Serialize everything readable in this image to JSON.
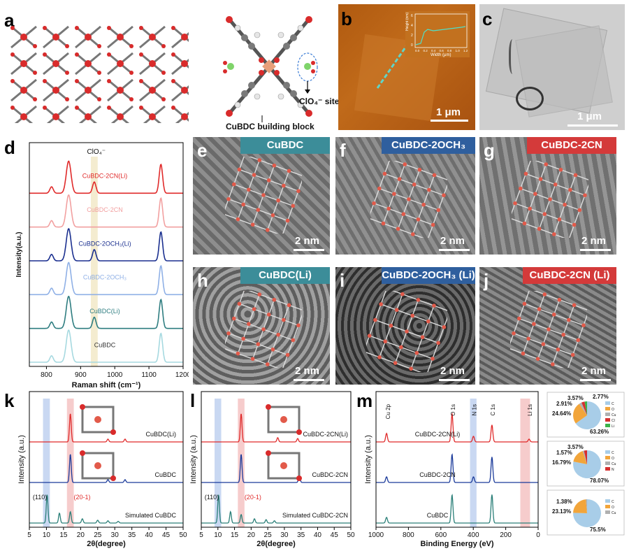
{
  "panels": {
    "a": {
      "label": "a",
      "site_label": "ClO₄⁻ site",
      "block_label": "CuBDC building block"
    },
    "b": {
      "label": "b",
      "scale_bar": "1 μm",
      "inset": {
        "ylabel": "Height (nm)",
        "xlabel": "Width (μm)",
        "yticks": [
          "0",
          "2",
          "4",
          "6"
        ],
        "xticks": [
          "0.0",
          "0.2",
          "0.4",
          "0.6",
          "0.8",
          "1.0",
          "1.2"
        ]
      }
    },
    "c": {
      "label": "c",
      "scale_bar": "1 μm"
    },
    "d": {
      "label": "d",
      "clo4_label": "ClO₄⁻"
    },
    "e": {
      "label": "e",
      "title": "CuBDC",
      "scale_bar": "2 nm",
      "color": "#3c8d99"
    },
    "f": {
      "label": "f",
      "title": "CuBDC-2OCH₃",
      "scale_bar": "2 nm",
      "color": "#2f5f9e"
    },
    "g": {
      "label": "g",
      "title": "CuBDC-2CN",
      "scale_bar": "2 nm",
      "color": "#d43a3a"
    },
    "h": {
      "label": "h",
      "title": "CuBDC(Li)",
      "scale_bar": "2 nm",
      "color": "#3c8d99"
    },
    "i": {
      "label": "i",
      "title": "CuBDC-2OCH₃ (Li)",
      "scale_bar": "2 nm",
      "color": "#2f5f9e"
    },
    "j": {
      "label": "j",
      "title": "CuBDC-2CN (Li)",
      "scale_bar": "2 nm",
      "color": "#d43a3a"
    },
    "k": {
      "label": "k"
    },
    "l": {
      "label": "l"
    },
    "m": {
      "label": "m"
    }
  },
  "chart_data": [
    {
      "id": "d",
      "type": "line",
      "xlabel": "Raman shift (cm⁻¹)",
      "ylabel": "Intensity(a.u.)",
      "xlim": [
        750,
        1200
      ],
      "xticks": [
        800,
        900,
        1000,
        1100,
        1200
      ],
      "highlight_band": [
        930,
        950
      ],
      "peaks_cm-1": [
        815,
        865,
        940,
        1135
      ],
      "series": [
        {
          "name": "CuBDC-2CN(Li)",
          "color": "#e02a2a",
          "offset": 5,
          "has_clo4": true
        },
        {
          "name": "CuBDC-2CN",
          "color": "#f2a0a0",
          "offset": 4,
          "has_clo4": false
        },
        {
          "name": "CuBDC-2OCH₃(Li)",
          "color": "#1a2f8f",
          "offset": 3,
          "has_clo4": true
        },
        {
          "name": "CuBDC-2OCH₃",
          "color": "#8fb0e6",
          "offset": 2,
          "has_clo4": false
        },
        {
          "name": "CuBDC(Li)",
          "color": "#2e7d80",
          "offset": 1,
          "has_clo4": true
        },
        {
          "name": "CuBDC",
          "color": "#a6d9e0",
          "offset": 0,
          "has_clo4": false
        }
      ]
    },
    {
      "id": "k",
      "type": "line",
      "xlabel": "2θ(degree)",
      "ylabel": "Intensity (a.u.)",
      "xlim": [
        5,
        50
      ],
      "xticks": [
        5,
        10,
        15,
        20,
        25,
        30,
        35,
        40,
        45,
        50
      ],
      "bands": [
        {
          "range": [
            9,
            11
          ],
          "color": "#c9d8f2"
        },
        {
          "range": [
            16,
            18
          ],
          "color": "#f6cccc"
        }
      ],
      "annotations": [
        "(110)",
        "(20-1)"
      ],
      "series": [
        {
          "name": "CuBDC(Li)",
          "color": "#e02a2a",
          "peaks": [
            [
              17,
              1.0
            ],
            [
              28,
              0.1
            ],
            [
              33,
              0.1
            ]
          ]
        },
        {
          "name": "CuBDC",
          "color": "#1a3a9a",
          "peaks": [
            [
              17,
              1.0
            ],
            [
              28,
              0.1
            ],
            [
              33,
              0.1
            ]
          ]
        },
        {
          "name": "Simulated CuBDC",
          "color": "#2a7f78",
          "peaks": [
            [
              10.2,
              1.0
            ],
            [
              13.8,
              0.35
            ],
            [
              17,
              0.4
            ],
            [
              20.5,
              0.15
            ],
            [
              25,
              0.1
            ],
            [
              28,
              0.08
            ],
            [
              31,
              0.06
            ]
          ]
        }
      ]
    },
    {
      "id": "l",
      "type": "line",
      "xlabel": "2θ(degree)",
      "ylabel": "Intensity (a.u.)",
      "xlim": [
        5,
        50
      ],
      "xticks": [
        5,
        10,
        15,
        20,
        25,
        30,
        35,
        40,
        45,
        50
      ],
      "bands": [
        {
          "range": [
            9,
            11
          ],
          "color": "#c9d8f2"
        },
        {
          "range": [
            16,
            18
          ],
          "color": "#f6cccc"
        }
      ],
      "annotations": [
        "(110)",
        "(20-1)"
      ],
      "series": [
        {
          "name": "CuBDC-2CN(Li)",
          "color": "#e02a2a",
          "peaks": [
            [
              17,
              1.0
            ],
            [
              28,
              0.15
            ],
            [
              34,
              0.12
            ]
          ]
        },
        {
          "name": "CuBDC-2CN",
          "color": "#1a3a9a",
          "peaks": [
            [
              17,
              1.0
            ],
            [
              34.5,
              0.25
            ]
          ]
        },
        {
          "name": "Simulated CuBDC-2CN",
          "color": "#2a7f78",
          "peaks": [
            [
              10.2,
              1.0
            ],
            [
              13.8,
              0.4
            ],
            [
              17,
              0.3
            ],
            [
              21,
              0.15
            ],
            [
              24.5,
              0.12
            ],
            [
              27,
              0.08
            ]
          ]
        }
      ]
    },
    {
      "id": "m",
      "type": "line",
      "xlabel": "Binding Energy (eV)",
      "ylabel": "Intensity (a.u.)",
      "xlim": [
        1000,
        0
      ],
      "xticks": [
        1000,
        800,
        600,
        400,
        200,
        0
      ],
      "peak_labels": [
        "Cu 2p",
        "O 1s",
        "N 1s",
        "C 1s",
        "Li 1s"
      ],
      "bands": [
        {
          "range": [
            420,
            380
          ],
          "color": "#c9d8f2"
        },
        {
          "range": [
            110,
            50
          ],
          "color": "#f6cccc"
        }
      ],
      "series": [
        {
          "name": "CuBDC-2CN(Li)",
          "color": "#e02a2a",
          "peaks": [
            [
              935,
              0.3
            ],
            [
              531,
              1.0
            ],
            [
              399,
              0.2
            ],
            [
              285,
              0.6
            ],
            [
              56,
              0.1
            ]
          ]
        },
        {
          "name": "CuBDC-2CN",
          "color": "#1a3a9a",
          "peaks": [
            [
              935,
              0.2
            ],
            [
              531,
              1.0
            ],
            [
              399,
              0.2
            ],
            [
              285,
              0.9
            ]
          ]
        },
        {
          "name": "CuBDC",
          "color": "#2a7f78",
          "peaks": [
            [
              935,
              0.2
            ],
            [
              531,
              1.0
            ],
            [
              285,
              1.0
            ]
          ]
        }
      ]
    },
    {
      "id": "m-pie-1",
      "type": "pie",
      "labels": [
        "C",
        "O",
        "Cu",
        "Cl",
        "Li"
      ],
      "colors": [
        "#a8cde8",
        "#f2a53a",
        "#b0b0b0",
        "#d62f2f",
        "#3bb34a"
      ],
      "values": [
        63.26,
        24.64,
        2.91,
        3.57,
        2.77
      ],
      "value_labels": [
        "63.26%",
        "24.64%",
        "2.91%",
        "3.57%",
        "2.77%"
      ]
    },
    {
      "id": "m-pie-2",
      "type": "pie",
      "labels": [
        "C",
        "O",
        "Cu",
        "N"
      ],
      "colors": [
        "#a8cde8",
        "#f2a53a",
        "#b0b0b0",
        "#d62f2f"
      ],
      "values": [
        78.07,
        16.79,
        1.57,
        3.57
      ],
      "value_labels": [
        "78.07%",
        "16.79%",
        "1.57%",
        "3.57%"
      ]
    },
    {
      "id": "m-pie-3",
      "type": "pie",
      "labels": [
        "C",
        "O",
        "Cu"
      ],
      "colors": [
        "#a8cde8",
        "#f2a53a",
        "#b0b0b0"
      ],
      "values": [
        75.5,
        23.13,
        1.38
      ],
      "value_labels": [
        "75.5%",
        "23.13%",
        "1.38%"
      ]
    }
  ]
}
